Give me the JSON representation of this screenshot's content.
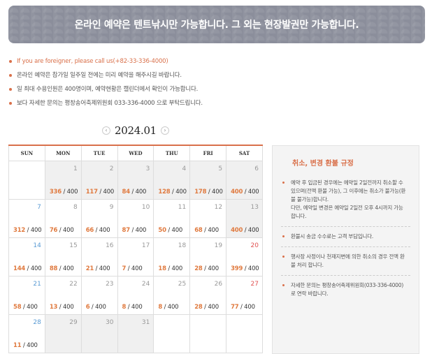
{
  "banner": {
    "text": "온라인 예약은 텐트낚시만 가능합니다. 그 외는 현장발권만 가능합니다."
  },
  "notes": [
    {
      "text": "If you are foreigner, please call us(+82-33-336-4000)",
      "highlight": true
    },
    {
      "text": "온라인 예약은 참가일 일주일 전에는 미리 예약을 해주시길 바랍니다.",
      "highlight": false
    },
    {
      "text": "일 최대 수용인원은 400명이며, 예약현황은 캘린더에서 확인이 가능합니다.",
      "highlight": false
    },
    {
      "text": "보다 자세한 문의는 평창송어축제위원회 033-336-4000 으로 부탁드립니다.",
      "highlight": false
    }
  ],
  "month": {
    "label": "2024.01",
    "prev": "‹",
    "next": "›"
  },
  "calendar": {
    "headers": [
      "SUN",
      "MON",
      "TUE",
      "WED",
      "THU",
      "FRI",
      "SAT"
    ],
    "weeks": [
      [
        null,
        {
          "d": "1",
          "c": "336",
          "m": "400",
          "past": true
        },
        {
          "d": "2",
          "c": "117",
          "m": "400",
          "past": true
        },
        {
          "d": "3",
          "c": "84",
          "m": "400",
          "past": true
        },
        {
          "d": "4",
          "c": "128",
          "m": "400",
          "past": true
        },
        {
          "d": "5",
          "c": "178",
          "m": "400",
          "past": true
        },
        {
          "d": "6",
          "c": "400",
          "m": "400",
          "past": true
        }
      ],
      [
        {
          "d": "7",
          "c": "312",
          "m": "400"
        },
        {
          "d": "8",
          "c": "76",
          "m": "400"
        },
        {
          "d": "9",
          "c": "66",
          "m": "400"
        },
        {
          "d": "10",
          "c": "87",
          "m": "400"
        },
        {
          "d": "11",
          "c": "50",
          "m": "400"
        },
        {
          "d": "12",
          "c": "68",
          "m": "400"
        },
        {
          "d": "13",
          "c": "400",
          "m": "400",
          "past": true
        }
      ],
      [
        {
          "d": "14",
          "c": "144",
          "m": "400"
        },
        {
          "d": "15",
          "c": "88",
          "m": "400"
        },
        {
          "d": "16",
          "c": "21",
          "m": "400"
        },
        {
          "d": "17",
          "c": "7",
          "m": "400"
        },
        {
          "d": "18",
          "c": "18",
          "m": "400"
        },
        {
          "d": "19",
          "c": "28",
          "m": "400"
        },
        {
          "d": "20",
          "c": "399",
          "m": "400"
        }
      ],
      [
        {
          "d": "21",
          "c": "58",
          "m": "400"
        },
        {
          "d": "22",
          "c": "13",
          "m": "400"
        },
        {
          "d": "23",
          "c": "6",
          "m": "400"
        },
        {
          "d": "24",
          "c": "8",
          "m": "400"
        },
        {
          "d": "25",
          "c": "8",
          "m": "400"
        },
        {
          "d": "26",
          "c": "28",
          "m": "400"
        },
        {
          "d": "27",
          "c": "77",
          "m": "400"
        }
      ],
      [
        {
          "d": "28",
          "c": "11",
          "m": "400"
        },
        {
          "d": "29",
          "c": null,
          "m": null,
          "past": true
        },
        {
          "d": "30",
          "c": null,
          "m": null,
          "past": true
        },
        {
          "d": "31",
          "c": null,
          "m": null,
          "past": true
        },
        null,
        null,
        null
      ]
    ]
  },
  "policy": {
    "title": "취소, 변경 환불 규정",
    "items": [
      [
        "예약 후 입금된 경우에는 예약일 2일전까지 취소할 수 있으며(전액 환불 가능), 그 이후에는 취소가 불가능(환불 불가능)합니다.",
        "다만, 예약일 변경은 예약일 2일전 오후 4시까지 가능합니다."
      ],
      [
        "환불시 송금 수수료는 고객 부담입니다."
      ],
      [
        "행사장 사정이나 천재지변에 의한 취소의 경우 전액 환불 처리 합니다."
      ],
      [
        "자세한 문의는 평창송어축제위원회(033-336-4000)로 연락 바랍니다."
      ]
    ]
  },
  "colors": {
    "accent": "#d9704a",
    "count": "#e07a3f",
    "banner": "#8b8e9b",
    "saturday": "#5a9bd4",
    "sunday": "#e05252"
  }
}
